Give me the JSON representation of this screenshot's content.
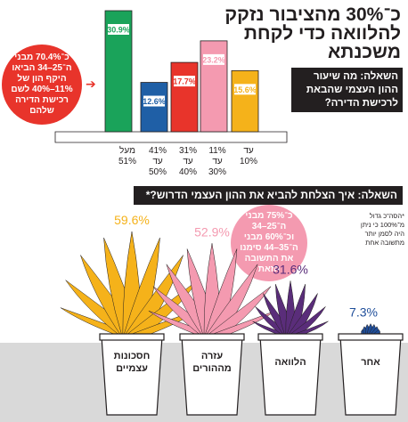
{
  "title": "כ־30% מהציבור נזקק להלוואה כדי לקחת משכנתא",
  "question1": "השאלה: מה שיעור ההון העצמי שהבאת לרכישת הדירה?",
  "question2": "השאלה: איך הצלחת להביא את ההון העצמי הדרוש?*",
  "callout1": "כ־70.4% מבני ה־25–34 הביאו היקף הון של 11%–40% לשם רכישת הדירה שלהם",
  "callout2": "כ־75% מבני ה־25–34 וכ־60% מבני ה־35–44 סימנו את התשובה הזאת",
  "footnote": "*הסה\"כ גדול מ־100% כי ניתן היה לסמן יותר מתשובה אחת",
  "arrow": "➔",
  "colors": {
    "green": "#1aa35a",
    "blue": "#1f5fa6",
    "red": "#e8342b",
    "pink": "#f49ab0",
    "yellow": "#f5b21a",
    "purple": "#5a2d7a",
    "darkblue": "#1f4e9a",
    "floor": "#d9d9d9"
  },
  "chart_data": [
    {
      "type": "bar",
      "categories": [
        "מעל 51%",
        "41% עד 50%",
        "31% עד 40%",
        "11% עד 30%",
        "עד 10%"
      ],
      "category_lines": [
        [
          "מעל",
          "51%"
        ],
        [
          "41%",
          "עד",
          "50%"
        ],
        [
          "31%",
          "עד",
          "40%"
        ],
        [
          "11%",
          "עד",
          "30%"
        ],
        [
          "עד",
          "10%"
        ]
      ],
      "values": [
        30.9,
        12.6,
        17.7,
        23.2,
        15.6
      ],
      "labels": [
        "30.9%",
        "12.6%",
        "17.7%",
        "23.2%",
        "15.6%"
      ],
      "colors": [
        "#1aa35a",
        "#1f5fa6",
        "#e8342b",
        "#f49ab0",
        "#f5b21a"
      ]
    },
    {
      "type": "bar",
      "categories": [
        "חסכונות עצמיים",
        "עזרה מההורים",
        "הלוואה",
        "אחר"
      ],
      "category_lines": [
        [
          "חסכונות",
          "עצמיים"
        ],
        [
          "עזרה",
          "מההורים"
        ],
        [
          "הלוואה"
        ],
        [
          "אחר"
        ]
      ],
      "values": [
        59.6,
        52.9,
        31.6,
        7.3
      ],
      "labels": [
        "59.6%",
        "52.9%",
        "31.6%",
        "7.3%"
      ],
      "colors": [
        "#f5b21a",
        "#f49ab0",
        "#5a2d7a",
        "#1f4e9a"
      ]
    }
  ]
}
